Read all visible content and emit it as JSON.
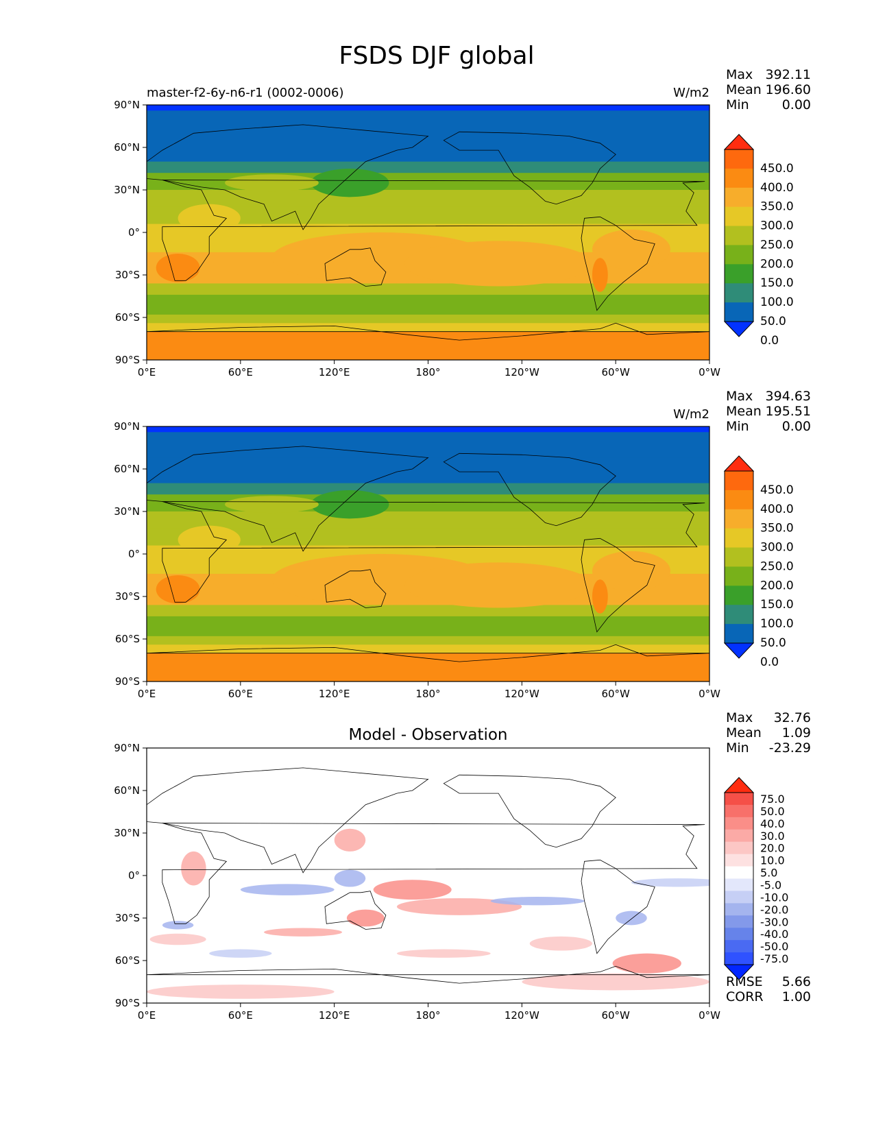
{
  "figure": {
    "title": "FSDS DJF global"
  },
  "axes": {
    "lat_ticks": [
      "90°N",
      "60°N",
      "30°N",
      "0°",
      "30°S",
      "60°S",
      "90°S"
    ],
    "lon_ticks": [
      "0°E",
      "60°E",
      "120°E",
      "180°",
      "120°W",
      "60°W",
      "0°W"
    ]
  },
  "panels": [
    {
      "title": "",
      "left_label": "master-f2-6y-n6-r1 (0002-0006)",
      "units": "W/m2",
      "stats": {
        "max_label": "Max",
        "max": "392.11",
        "mean_label": "Mean",
        "mean": "196.60",
        "min_label": "Min",
        "min": "0.00"
      },
      "colorbar": {
        "ticks": [
          "450.0",
          "400.0",
          "350.0",
          "300.0",
          "250.0",
          "200.0",
          "150.0",
          "100.0",
          "50.0",
          "0.0"
        ],
        "colors": [
          "#0232ff",
          "#0866b7",
          "#2f8c78",
          "#3aa02a",
          "#78b11a",
          "#b2c01f",
          "#e6c826",
          "#f7ad2b",
          "#fb8b12",
          "#fe690e",
          "#ff2d10"
        ]
      }
    },
    {
      "title": "",
      "left_label": "",
      "units": "W/m2",
      "stats": {
        "max_label": "Max",
        "max": "394.63",
        "mean_label": "Mean",
        "mean": "195.51",
        "min_label": "Min",
        "min": "0.00"
      },
      "colorbar": {
        "ticks": [
          "450.0",
          "400.0",
          "350.0",
          "300.0",
          "250.0",
          "200.0",
          "150.0",
          "100.0",
          "50.0",
          "0.0"
        ],
        "colors": [
          "#0232ff",
          "#0866b7",
          "#2f8c78",
          "#3aa02a",
          "#78b11a",
          "#b2c01f",
          "#e6c826",
          "#f7ad2b",
          "#fb8b12",
          "#fe690e",
          "#ff2d10"
        ]
      }
    },
    {
      "title": "Model - Observation",
      "left_label": "",
      "units": "",
      "stats": {
        "max_label": "Max",
        "max": "32.76",
        "mean_label": "Mean",
        "mean": "1.09",
        "min_label": "Min",
        "min": "-23.29"
      },
      "metrics": {
        "rmse_label": "RMSE",
        "rmse": "5.66",
        "corr_label": "CORR",
        "corr": "1.00"
      },
      "colorbar": {
        "ticks": [
          "75.0",
          "50.0",
          "40.0",
          "30.0",
          "20.0",
          "10.0",
          "5.0",
          "-5.0",
          "-10.0",
          "-20.0",
          "-30.0",
          "-40.0",
          "-50.0",
          "-75.0"
        ],
        "colors": [
          "#0226ff",
          "#2f52ff",
          "#4a6af2",
          "#6683ea",
          "#8399ea",
          "#a4b4ee",
          "#c6cff5",
          "#e3e7fb",
          "#ffffff",
          "#fde1e1",
          "#fcc7c5",
          "#fbaaa6",
          "#fa8e88",
          "#f8706a",
          "#f55048",
          "#ff2d10"
        ]
      }
    }
  ],
  "colors": {
    "ocean_mid": "#e6c826",
    "land_outline": "#000000"
  }
}
